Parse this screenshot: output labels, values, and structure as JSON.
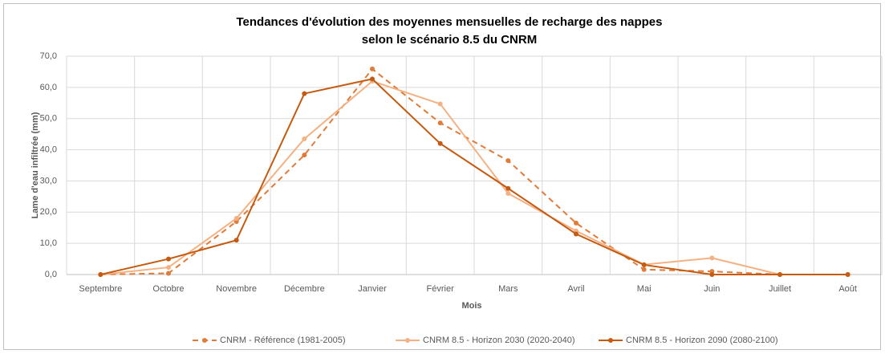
{
  "chart_data": {
    "type": "line",
    "title": "Tendances d'évolution des moyennes mensuelles de recharge des nappes",
    "subtitle": "selon le scénario 8.5 du CNRM",
    "x_label": "Mois",
    "y_label": "Lame d'eau infiltrée (mm)",
    "categories": [
      "Septembre",
      "Octobre",
      "Novembre",
      "Décembre",
      "Janvier",
      "Février",
      "Mars",
      "Avril",
      "Mai",
      "Juin",
      "Juillet",
      "Août"
    ],
    "ylim": [
      0,
      70
    ],
    "yticks": [
      {
        "value": 0,
        "label": "0,0"
      },
      {
        "value": 10,
        "label": "10,0"
      },
      {
        "value": 20,
        "label": "20,0"
      },
      {
        "value": 30,
        "label": "30,0"
      },
      {
        "value": 40,
        "label": "40,0"
      },
      {
        "value": 50,
        "label": "50,0"
      },
      {
        "value": 60,
        "label": "60,0"
      },
      {
        "value": 70,
        "label": "70,0"
      }
    ],
    "grid": true,
    "legend": "bottom",
    "series": [
      {
        "name": "CNRM - Référence (1981-2005)",
        "color": "#e07b39",
        "line_style": "dashed",
        "values": [
          0,
          0.4,
          17,
          38.3,
          65.9,
          48.6,
          36.5,
          16.5,
          1.6,
          1.0,
          0,
          0
        ]
      },
      {
        "name": "CNRM 8.5 - Horizon 2030 (2020-2040)",
        "color": "#f4b183",
        "line_style": "solid",
        "values": [
          0,
          2.3,
          18,
          43.5,
          62,
          54.7,
          26,
          14,
          3.2,
          5.3,
          0,
          0
        ]
      },
      {
        "name": "CNRM 8.5 - Horizon 2090 (2080-2100)",
        "color": "#c55a11",
        "line_style": "solid",
        "values": [
          0,
          5,
          11,
          58,
          62.7,
          42,
          27.6,
          13,
          3.1,
          0,
          0,
          0
        ]
      }
    ]
  }
}
